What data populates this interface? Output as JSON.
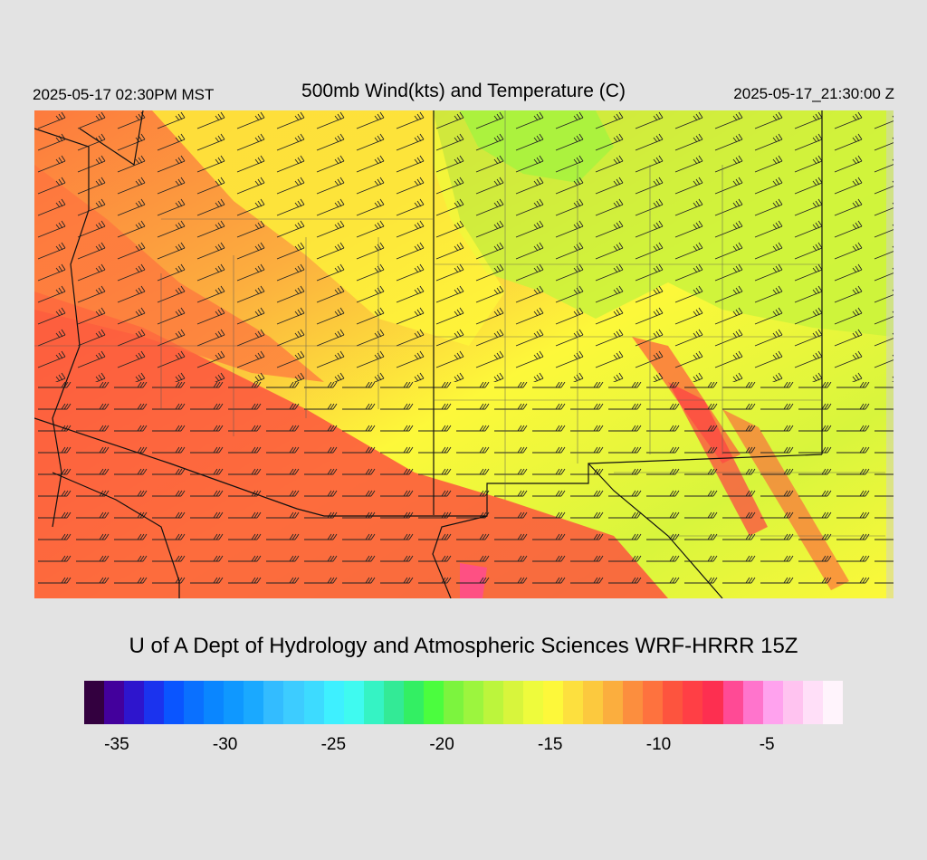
{
  "header": {
    "valid_local": "2025-05-17 02:30PM MST",
    "title": "500mb Wind(kts) and Temperature (C)",
    "valid_utc": "2025-05-17_21:30:00 Z"
  },
  "credit": "U of A Dept of Hydrology and Atmospheric Sciences WRF-HRRR 15Z",
  "colorbar": {
    "colors": [
      "#33003f",
      "#43009c",
      "#2e15cd",
      "#1b33ee",
      "#0a55ff",
      "#0a70ff",
      "#0a86ff",
      "#0f98ff",
      "#1aa9ff",
      "#33bcff",
      "#3dccff",
      "#3ddbff",
      "#3ef0ff",
      "#3ffaf0",
      "#35f3c4",
      "#33ea96",
      "#33ef63",
      "#4bfd3e",
      "#7cf43e",
      "#9cf53e",
      "#bcf53c",
      "#d8f53c",
      "#eefb3c",
      "#fdf83a",
      "#fde03e",
      "#fcc93e",
      "#fbae3e",
      "#fc8e3e",
      "#fe723e",
      "#fd543e",
      "#ff3f45",
      "#fd2f50",
      "#ff4a95",
      "#ff74cc",
      "#ffa2ee",
      "#ffc3f0",
      "#ffdff8",
      "#fff4fc"
    ],
    "ticks": [
      "-35",
      "-30",
      "-25",
      "-20",
      "-15",
      "-10",
      "-5"
    ],
    "tick_values": [
      -35,
      -30,
      -25,
      -20,
      -15,
      -10,
      -5
    ],
    "range": [
      -36.5,
      -1.5
    ]
  },
  "map": {
    "field": "500mb temperature (C) shaded, wind barbs (kts)",
    "temperature_range_shown": [
      -18,
      -8
    ]
  }
}
